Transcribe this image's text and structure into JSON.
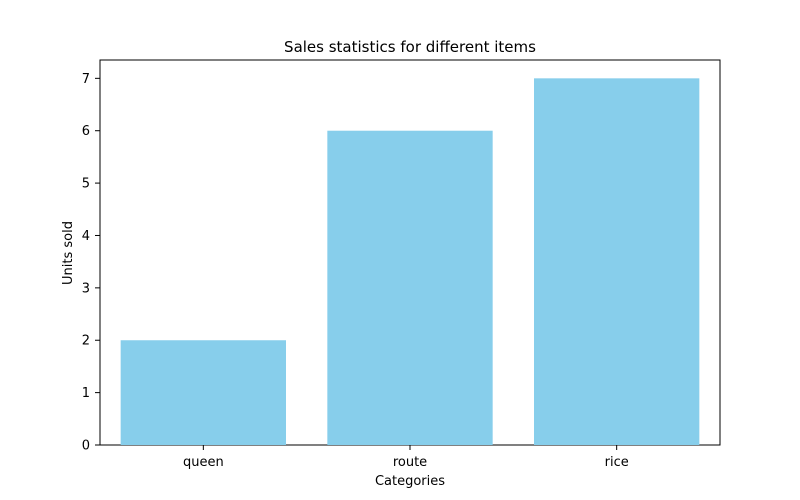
{
  "chart_data": {
    "type": "bar",
    "title": "Sales statistics for different items",
    "xlabel": "Categories",
    "ylabel": "Units sold",
    "categories": [
      "queen",
      "route",
      "rice"
    ],
    "values": [
      2,
      6,
      7
    ],
    "ylim": [
      0,
      7.35
    ],
    "yticks": [
      0,
      1,
      2,
      3,
      4,
      5,
      6,
      7
    ],
    "grid": false,
    "legend": "none",
    "colors": {
      "bar": "#87ceeb",
      "axis": "#000000",
      "text": "#000000"
    }
  }
}
